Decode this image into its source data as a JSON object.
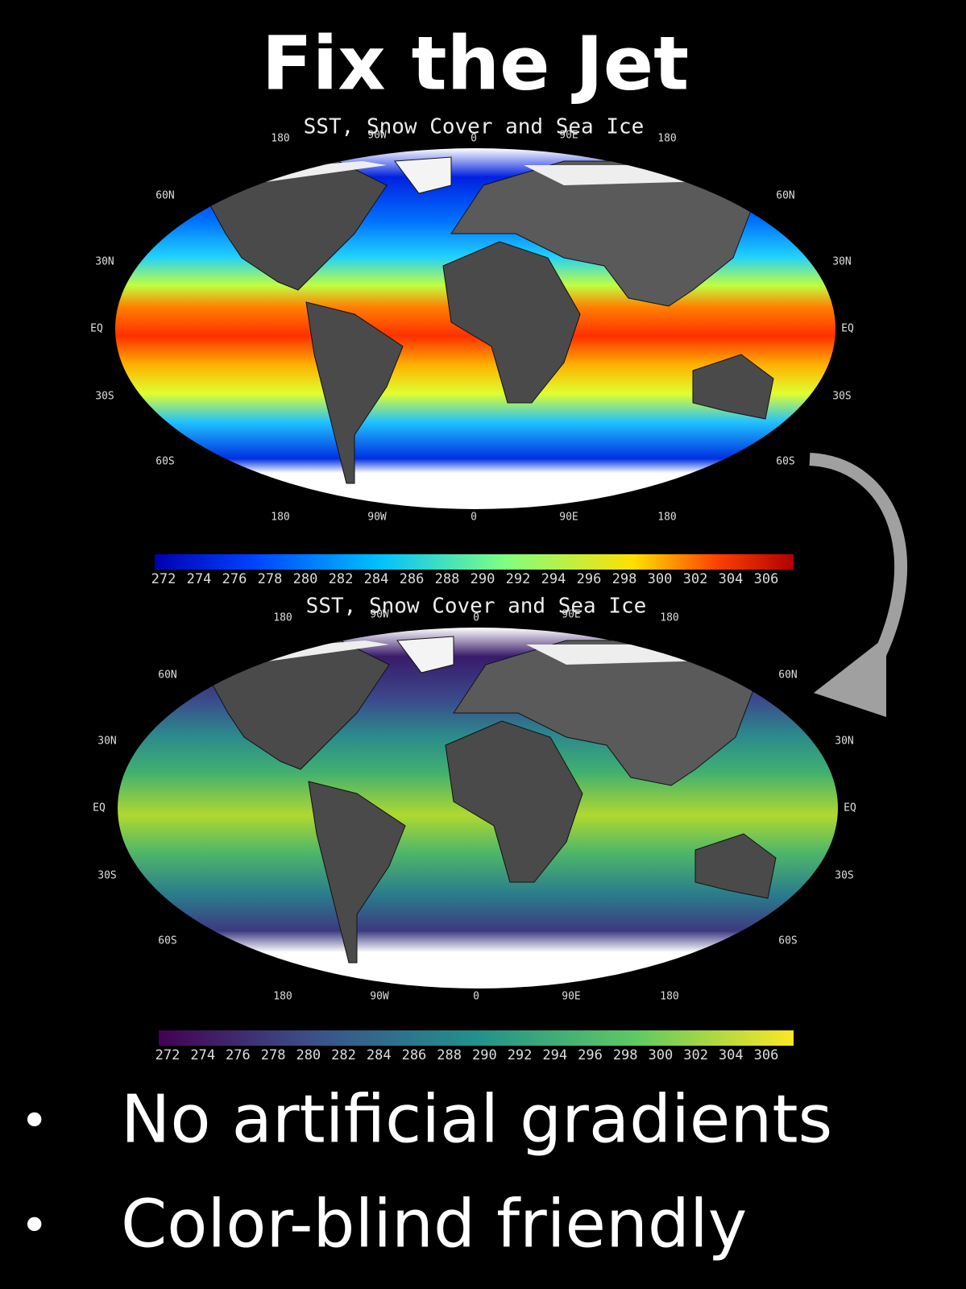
{
  "title": "Fix the Jet",
  "panels": [
    {
      "map_title": "SST, Snow Cover and Sea Ice",
      "lon_top": [
        "180",
        "90W",
        "0",
        "90E",
        "180"
      ],
      "lon_bottom": [
        "180",
        "90W",
        "0",
        "90E",
        "180"
      ],
      "lat_left": [
        "60N",
        "30N",
        "EQ",
        "30S",
        "60S"
      ],
      "lat_right": [
        "60N",
        "30N",
        "EQ",
        "30S",
        "60S"
      ],
      "colorbar_ticks": [
        272,
        274,
        276,
        278,
        280,
        282,
        284,
        286,
        288,
        290,
        292,
        294,
        296,
        298,
        300,
        302,
        304,
        306
      ]
    },
    {
      "map_title": "SST, Snow Cover and Sea Ice",
      "lon_top": [
        "180",
        "90W",
        "0",
        "90E",
        "180"
      ],
      "lon_bottom": [
        "180",
        "90W",
        "0",
        "90E",
        "180"
      ],
      "lat_left": [
        "60N",
        "30N",
        "EQ",
        "30S",
        "60S"
      ],
      "lat_right": [
        "60N",
        "30N",
        "EQ",
        "30S",
        "60S"
      ],
      "colorbar_ticks": [
        272,
        274,
        276,
        278,
        280,
        282,
        284,
        286,
        288,
        290,
        292,
        294,
        296,
        298,
        300,
        302,
        304,
        306
      ]
    }
  ],
  "bullets": [
    "No artificial gradients",
    "Color-blind friendly"
  ]
}
